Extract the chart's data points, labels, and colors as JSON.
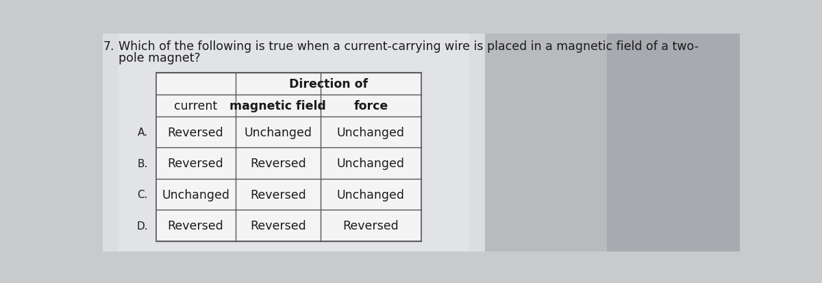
{
  "question_line1": "Which of the following is true when a current-carrying wire is placed in a magnetic field of a two-",
  "question_line2": "pole magnet?",
  "question_prefix": "7.",
  "col_headers": [
    "current",
    "magnetic field",
    "force"
  ],
  "span_header": "Direction of",
  "rows": [
    {
      "label": "A.",
      "current": "Reversed",
      "magnetic_field": "Unchanged",
      "force": "Unchanged"
    },
    {
      "label": "B.",
      "current": "Reversed",
      "magnetic_field": "Reversed",
      "force": "Unchanged"
    },
    {
      "label": "C.",
      "current": "Unchanged",
      "magnetic_field": "Reversed",
      "force": "Unchanged"
    },
    {
      "label": "D.",
      "current": "Reversed",
      "magnetic_field": "Reversed",
      "force": "Reversed"
    }
  ],
  "bg_color": "#c8cace",
  "page_color": "#e8e8ea",
  "table_bg": "#f0f0f0",
  "text_color": "#1a1a1a",
  "border_color": "#555555",
  "question_fontsize": 12.5,
  "header_fontsize": 12.5,
  "cell_fontsize": 12.5,
  "label_fontsize": 11.0
}
